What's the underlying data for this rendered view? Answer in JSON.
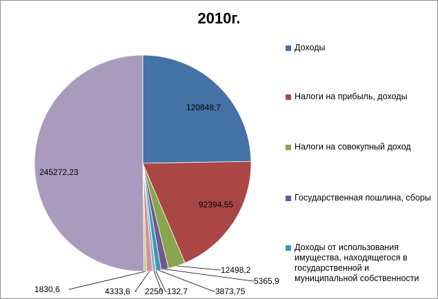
{
  "chart_data": {
    "type": "pie",
    "title": "2010г.",
    "series": [
      {
        "name": "",
        "values": [
          {
            "label": "Доходы",
            "value": 120848.7,
            "data_label": "120848,7",
            "color": "#4572A7"
          },
          {
            "label": "Налоги на прибыль, доходы",
            "value": 92394.55,
            "data_label": "92394,55",
            "color": "#AA4643"
          },
          {
            "label": "Налоги на совокупный доход",
            "value": 12498.2,
            "data_label": "12498,2",
            "color": "#89A54E"
          },
          {
            "label": "Государственная пошлина, сборы",
            "value": 5365.9,
            "data_label": "5365,9",
            "color": "#71588F"
          },
          {
            "label": "Доходы от использования имущества, находящегося в государственной и муниципальной собственности",
            "value": 3873.75,
            "data_label": "3873,75",
            "color": "#4198AF"
          },
          {
            "label": "",
            "value": 132.7,
            "data_label": "132,7",
            "color": "#DB843D"
          },
          {
            "label": "",
            "value": 2250,
            "data_label": "2250",
            "color": "#93A9CF"
          },
          {
            "label": "",
            "value": 4333.6,
            "data_label": "4333,6",
            "color": "#D19392"
          },
          {
            "label": "",
            "value": 1830.6,
            "data_label": "1830,6",
            "color": "#B9CD96"
          },
          {
            "label": "",
            "value": 245272.23,
            "data_label": "245272,23",
            "color": "#A99BBD"
          }
        ]
      }
    ],
    "legend_position": "right",
    "legend": [
      "Доходы",
      "Налоги на прибыль, доходы",
      "Налоги на совокупный доход",
      "Государственная пошлина, сборы",
      "Доходы от использования имущества, находящегося в государственной и муниципальной собственности"
    ]
  }
}
